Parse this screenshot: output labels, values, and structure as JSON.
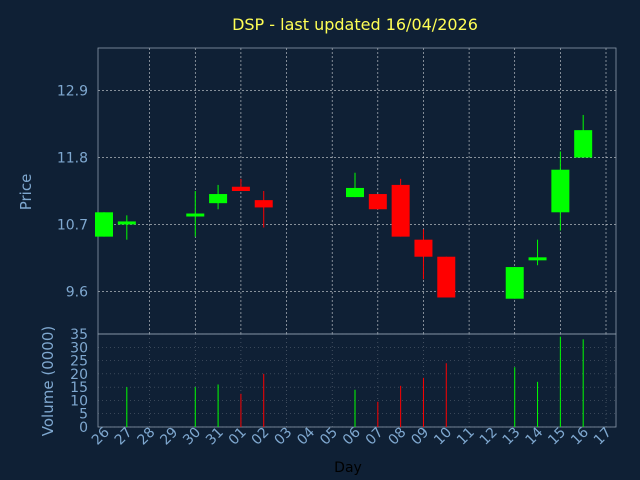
{
  "chart_data": [
    {
      "type": "candlestick",
      "title": "DSP - last updated 16/04/2026",
      "ylabel": "Price",
      "ylim": [
        8.9,
        13.6
      ],
      "yticks": [
        "9.6",
        "10.7",
        "11.8",
        "12.9"
      ],
      "ytick_values": [
        9.6,
        10.7,
        11.8,
        12.9
      ],
      "grid": true,
      "colors": {
        "up": "#00ff00",
        "down": "#ff0000",
        "grid": "#ffffff",
        "background": "#0f2035"
      },
      "categories": [
        "26",
        "27",
        "28",
        "29",
        "30",
        "31",
        "01",
        "02",
        "03",
        "04",
        "05",
        "06",
        "07",
        "08",
        "09",
        "10",
        "11",
        "12",
        "13",
        "14",
        "15",
        "16",
        "17"
      ],
      "candles": [
        {
          "x": "26",
          "open": 10.5,
          "close": 10.9,
          "high": 10.9,
          "low": 10.5
        },
        {
          "x": "27",
          "open": 10.7,
          "close": 10.75,
          "high": 10.85,
          "low": 10.45
        },
        {
          "x": "30",
          "open": 10.85,
          "close": 10.88,
          "high": 11.25,
          "low": 10.5
        },
        {
          "x": "31",
          "open": 11.05,
          "close": 11.2,
          "high": 11.35,
          "low": 10.95
        },
        {
          "x": "01",
          "open": 11.32,
          "close": 11.25,
          "high": 11.45,
          "low": 11.25
        },
        {
          "x": "02",
          "open": 11.1,
          "close": 10.98,
          "high": 11.25,
          "low": 10.65
        },
        {
          "x": "06",
          "open": 11.15,
          "close": 11.3,
          "high": 11.55,
          "low": 11.15
        },
        {
          "x": "07",
          "open": 11.2,
          "close": 10.95,
          "high": 11.2,
          "low": 10.95
        },
        {
          "x": "08",
          "open": 11.35,
          "close": 10.5,
          "high": 11.45,
          "low": 10.5
        },
        {
          "x": "09",
          "open": 10.45,
          "close": 10.17,
          "high": 10.62,
          "low": 9.8
        },
        {
          "x": "10",
          "open": 10.17,
          "close": 9.5,
          "high": 10.17,
          "low": 9.5
        },
        {
          "x": "13",
          "open": 9.48,
          "close": 10.0,
          "high": 10.0,
          "low": 9.48
        },
        {
          "x": "14",
          "open": 10.13,
          "close": 10.16,
          "high": 10.45,
          "low": 10.03
        },
        {
          "x": "15",
          "open": 10.9,
          "close": 11.6,
          "high": 11.9,
          "low": 10.6
        },
        {
          "x": "16",
          "open": 11.8,
          "close": 12.25,
          "high": 12.5,
          "low": 11.8
        }
      ]
    },
    {
      "type": "bar",
      "ylabel": "Volume (0000)",
      "xlabel": "Day",
      "ylim": [
        0,
        35
      ],
      "yticks": [
        "0",
        "5",
        "10",
        "15",
        "20",
        "25",
        "30",
        "35"
      ],
      "ytick_values": [
        0,
        5,
        10,
        15,
        20,
        25,
        30,
        35
      ],
      "bars": [
        {
          "x": "27",
          "value": 15,
          "color": "#00ff00"
        },
        {
          "x": "30",
          "value": 15,
          "color": "#00ff00"
        },
        {
          "x": "31",
          "value": 16,
          "color": "#00ff00"
        },
        {
          "x": "01",
          "value": 12.5,
          "color": "#ff0000"
        },
        {
          "x": "02",
          "value": 20,
          "color": "#ff0000"
        },
        {
          "x": "06",
          "value": 14,
          "color": "#00ff00"
        },
        {
          "x": "07",
          "value": 9.5,
          "color": "#ff0000"
        },
        {
          "x": "08",
          "value": 15.5,
          "color": "#ff0000"
        },
        {
          "x": "09",
          "value": 18.5,
          "color": "#ff0000"
        },
        {
          "x": "10",
          "value": 24,
          "color": "#ff0000"
        },
        {
          "x": "13",
          "value": 22.5,
          "color": "#00ff00"
        },
        {
          "x": "14",
          "value": 17,
          "color": "#00ff00"
        },
        {
          "x": "15",
          "value": 34,
          "color": "#00ff00"
        },
        {
          "x": "16",
          "value": 33,
          "color": "#00ff00"
        }
      ]
    }
  ]
}
